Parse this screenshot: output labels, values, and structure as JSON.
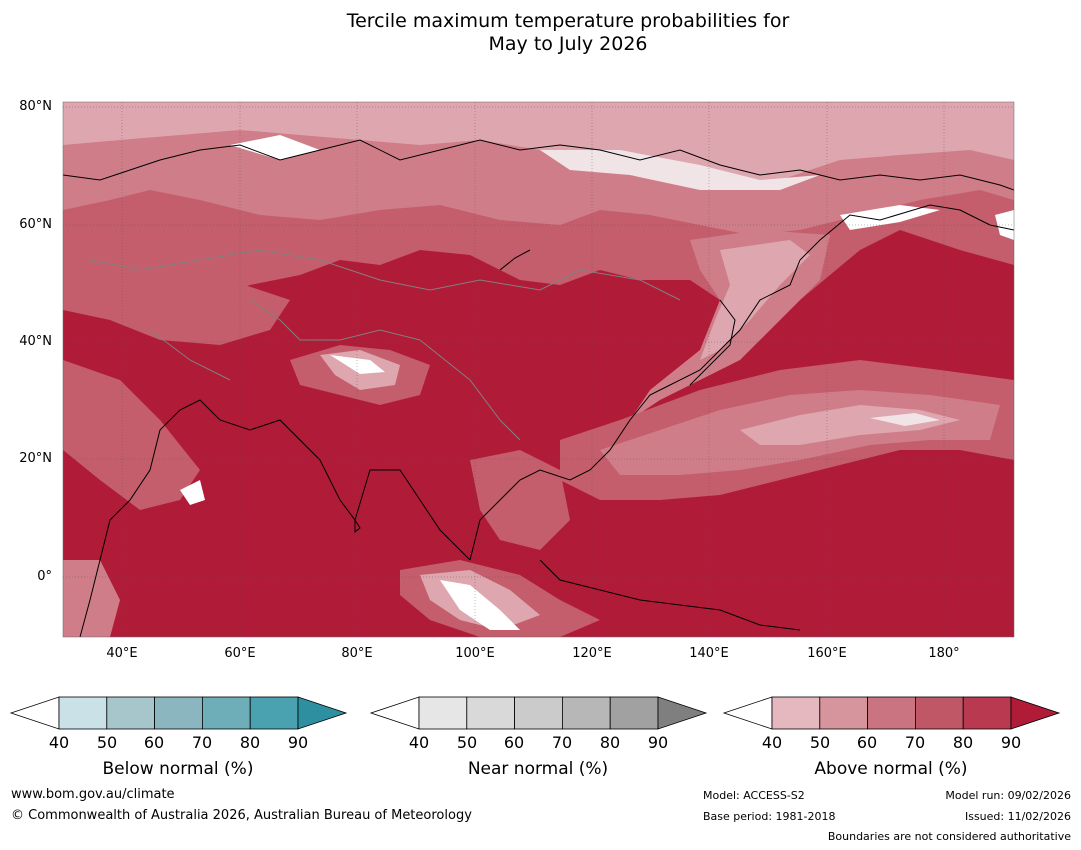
{
  "title": {
    "line1": "Tercile maximum temperature probabilities for",
    "line2": "May to July 2026"
  },
  "map": {
    "lat_labels": [
      "80°N",
      "60°N",
      "40°N",
      "20°N",
      "0°"
    ],
    "lon_labels": [
      "40°E",
      "60°E",
      "80°E",
      "100°E",
      "120°E",
      "140°E",
      "160°E",
      "180°"
    ],
    "colors": {
      "deep": "#b01b38",
      "c80": "#bb3a50",
      "c70": "#c45e6c",
      "c60": "#cf7e89",
      "c50": "#dea6ae",
      "c40": "#f1e4e6",
      "white": "#ffffff",
      "land_outline": "#000000",
      "boundary": "#808080"
    }
  },
  "colorbars": [
    {
      "id": "below",
      "label": "Below normal (%)",
      "ticks": [
        "40",
        "50",
        "60",
        "70",
        "80",
        "90"
      ],
      "colors": [
        "#c9e1e7",
        "#a7c6cc",
        "#8bb5bf",
        "#6daeb9",
        "#4aa2b0",
        "#2e8fa1"
      ]
    },
    {
      "id": "near",
      "label": "Near normal (%)",
      "ticks": [
        "40",
        "50",
        "60",
        "70",
        "80",
        "90"
      ],
      "colors": [
        "#e6e6e6",
        "#d9d9d9",
        "#cbcbcb",
        "#b7b7b7",
        "#a1a1a1",
        "#7f7f7f"
      ]
    },
    {
      "id": "above",
      "label": "Above normal (%)",
      "ticks": [
        "40",
        "50",
        "60",
        "70",
        "80",
        "90"
      ],
      "colors": [
        "#e4b8be",
        "#d6949c",
        "#c97480",
        "#c05767",
        "#b93a50",
        "#b01b38"
      ]
    }
  ],
  "footer": {
    "url": "www.bom.gov.au/climate",
    "copyright": "© Commonwealth of Australia 2026, Australian Bureau of Meteorology",
    "model": "Model: ACCESS-S2",
    "base_period": "Base period: 1981-2018",
    "model_run": "Model run: 09/02/2026",
    "issued": "Issued: 11/02/2026",
    "disclaimer": "Boundaries are not considered authoritative"
  }
}
